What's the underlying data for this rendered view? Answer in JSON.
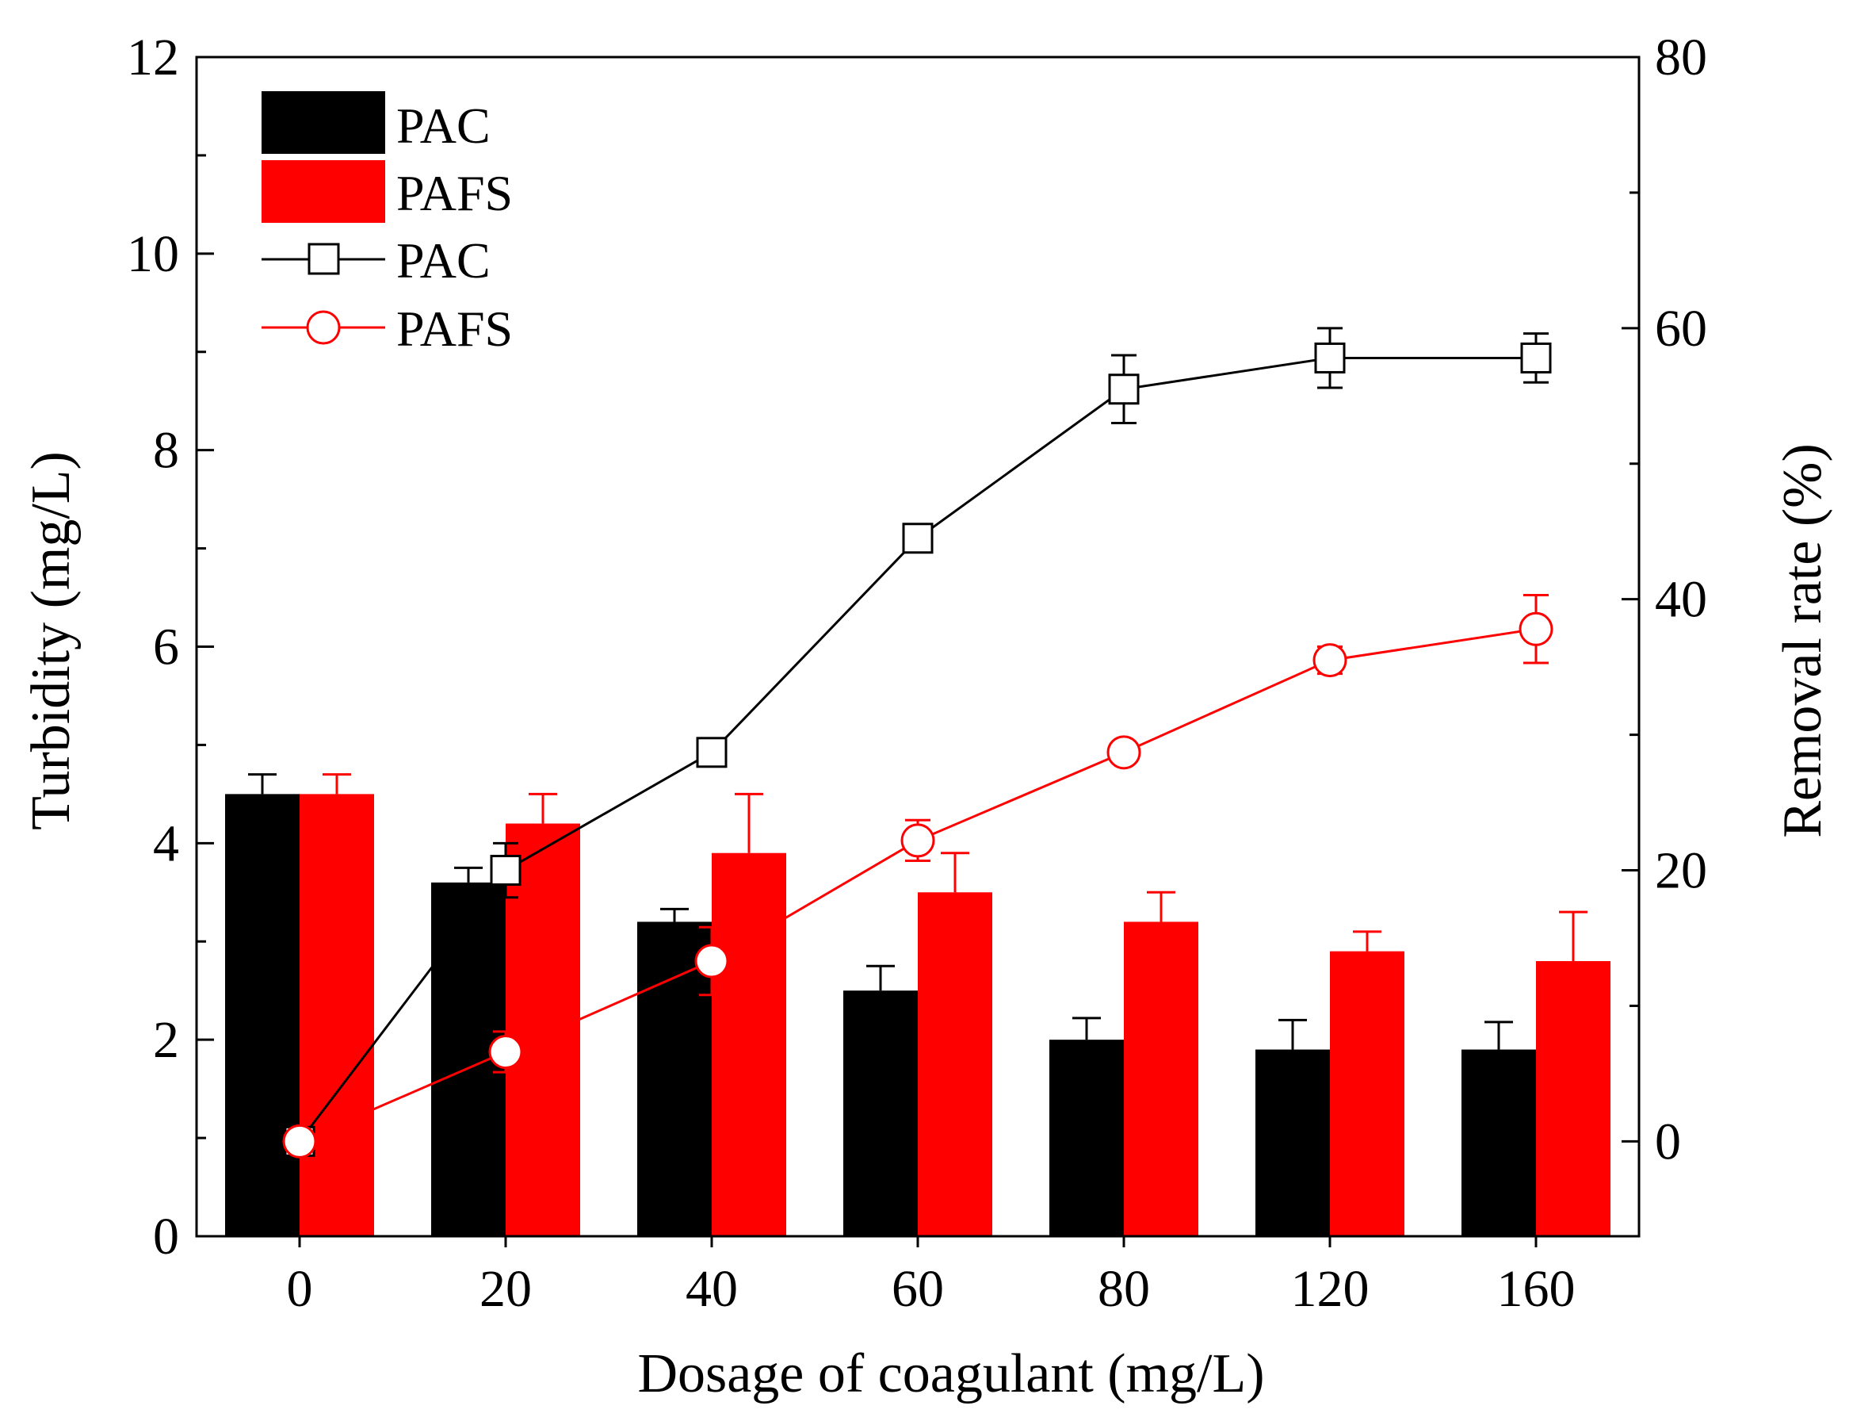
{
  "chart_data": {
    "type": "bar",
    "categories": [
      "0",
      "20",
      "40",
      "60",
      "80",
      "120",
      "160"
    ],
    "xlabel": "Dosage of coagulant (mg/L)",
    "ylabel": "Turbidity (mg/L)",
    "y2label": "Removal rate (%)",
    "ylim": [
      0,
      12
    ],
    "y2lim": [
      -7,
      80
    ],
    "yticks": [
      "0",
      "2",
      "4",
      "6",
      "8",
      "10",
      "12"
    ],
    "y2ticks": [
      "0",
      "20",
      "40",
      "60",
      "80"
    ],
    "legend_position": "top-left",
    "bar_series": [
      {
        "name": "PAC",
        "color": "#000000",
        "values": [
          4.5,
          3.6,
          3.2,
          2.5,
          2.0,
          1.9,
          1.9
        ],
        "errors": [
          0.2,
          0.15,
          0.13,
          0.25,
          0.22,
          0.3,
          0.28
        ]
      },
      {
        "name": "PAFS",
        "color": "#ff0000",
        "values": [
          4.5,
          4.2,
          3.9,
          3.5,
          3.2,
          2.9,
          2.8
        ],
        "errors": [
          0.2,
          0.3,
          0.6,
          0.4,
          0.3,
          0.2,
          0.5
        ]
      }
    ],
    "line_series": [
      {
        "name": "PAC",
        "color": "#000000",
        "marker": "square",
        "values": [
          0,
          20,
          28.7,
          44.5,
          55.5,
          57.8,
          57.8
        ],
        "errors": [
          0.5,
          2.0,
          0.5,
          0.5,
          2.5,
          2.2,
          1.8
        ]
      },
      {
        "name": "PAFS",
        "color": "#ff0000",
        "marker": "circle",
        "values": [
          0,
          6.6,
          13.3,
          22.2,
          28.7,
          35.5,
          37.8
        ],
        "errors": [
          0.5,
          1.5,
          2.5,
          1.5,
          0.5,
          1.0,
          2.5
        ]
      }
    ]
  }
}
